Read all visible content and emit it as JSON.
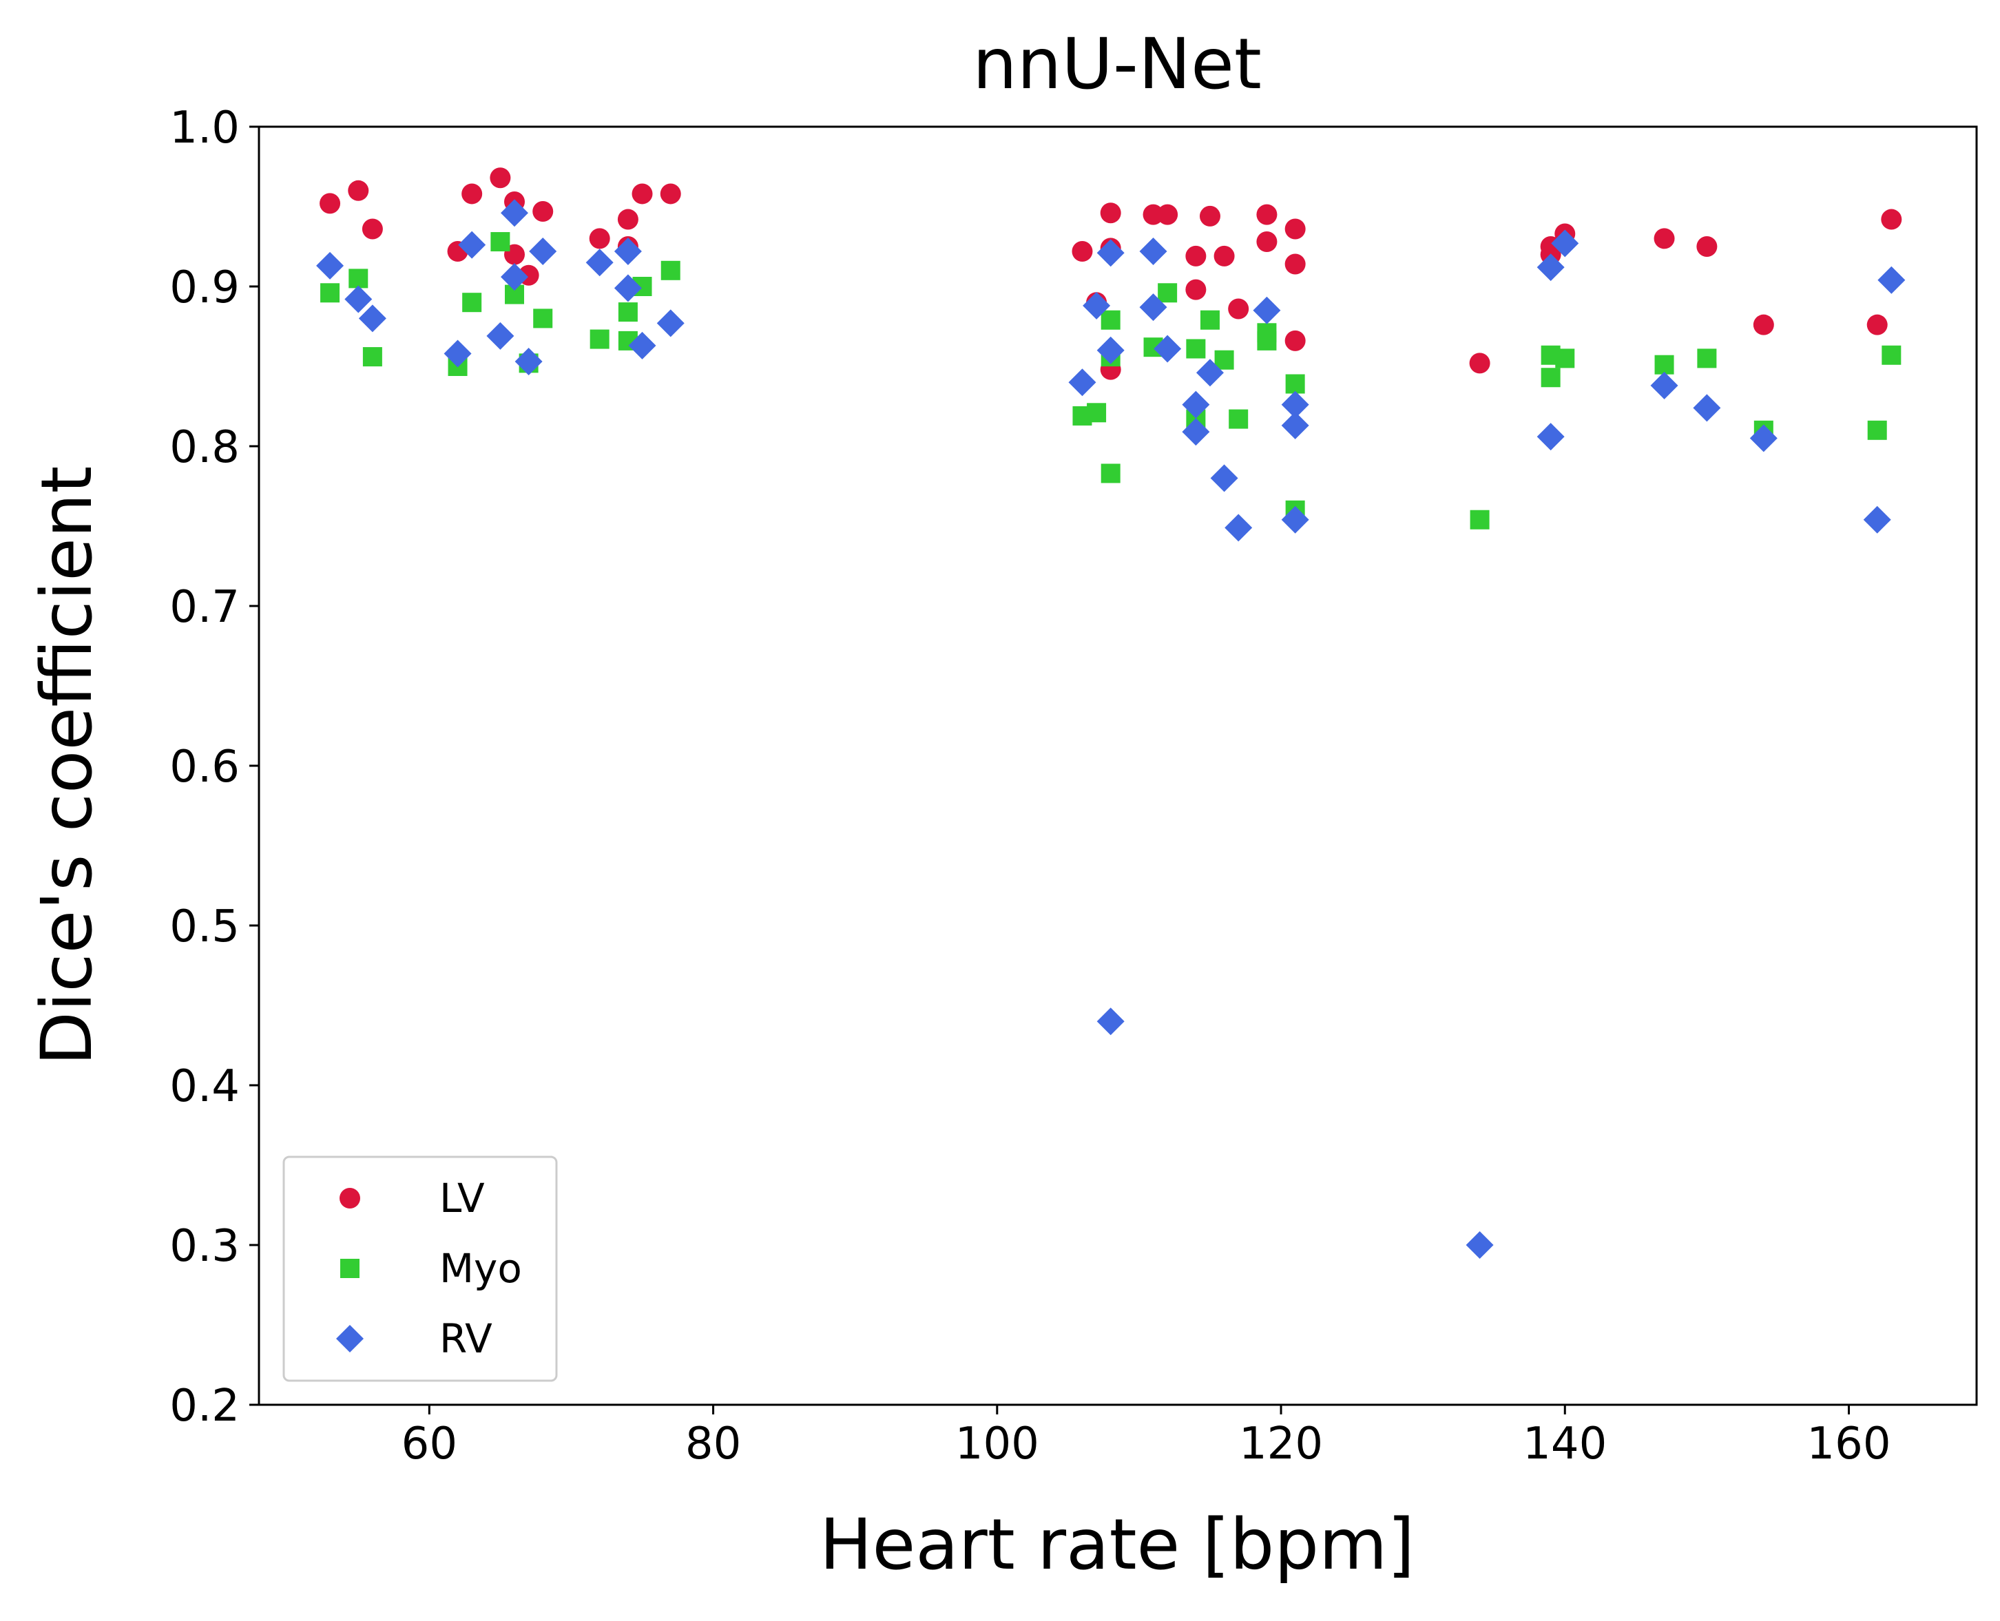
{
  "chart_data": {
    "type": "scatter",
    "title": "nnU-Net",
    "xlabel": "Heart rate [bpm]",
    "ylabel": "Dice's coefficient",
    "xlim": [
      48,
      169
    ],
    "ylim": [
      0.2,
      1.0
    ],
    "xticks": [
      60,
      80,
      100,
      120,
      140,
      160
    ],
    "xtick_labels": [
      "60",
      "80",
      "100",
      "120",
      "140",
      "160"
    ],
    "yticks": [
      0.2,
      0.3,
      0.4,
      0.5,
      0.6,
      0.7,
      0.8,
      0.9,
      1.0
    ],
    "ytick_labels": [
      "0.2",
      "0.3",
      "0.4",
      "0.5",
      "0.6",
      "0.7",
      "0.8",
      "0.9",
      "1.0"
    ],
    "grid": false,
    "legend_position": "lower-left",
    "series": [
      {
        "name": "LV",
        "marker": "circle",
        "color": "#dc143c",
        "points": [
          [
            53,
            0.952
          ],
          [
            55,
            0.96
          ],
          [
            56,
            0.936
          ],
          [
            62,
            0.922
          ],
          [
            63,
            0.958
          ],
          [
            65,
            0.968
          ],
          [
            66,
            0.953
          ],
          [
            66,
            0.92
          ],
          [
            67,
            0.907
          ],
          [
            68,
            0.947
          ],
          [
            72,
            0.93
          ],
          [
            74,
            0.942
          ],
          [
            74,
            0.925
          ],
          [
            75,
            0.958
          ],
          [
            77,
            0.958
          ],
          [
            106,
            0.922
          ],
          [
            107,
            0.89
          ],
          [
            108,
            0.946
          ],
          [
            108,
            0.924
          ],
          [
            108,
            0.848
          ],
          [
            111,
            0.945
          ],
          [
            112,
            0.945
          ],
          [
            114,
            0.919
          ],
          [
            114,
            0.898
          ],
          [
            115,
            0.944
          ],
          [
            116,
            0.919
          ],
          [
            117,
            0.886
          ],
          [
            119,
            0.945
          ],
          [
            119,
            0.928
          ],
          [
            121,
            0.936
          ],
          [
            121,
            0.914
          ],
          [
            121,
            0.866
          ],
          [
            134,
            0.852
          ],
          [
            139,
            0.925
          ],
          [
            139,
            0.92
          ],
          [
            140,
            0.933
          ],
          [
            147,
            0.93
          ],
          [
            150,
            0.925
          ],
          [
            154,
            0.876
          ],
          [
            162,
            0.876
          ],
          [
            163,
            0.942
          ]
        ]
      },
      {
        "name": "Myo",
        "marker": "square",
        "color": "#32cd32",
        "points": [
          [
            53,
            0.896
          ],
          [
            55,
            0.905
          ],
          [
            56,
            0.856
          ],
          [
            62,
            0.85
          ],
          [
            63,
            0.89
          ],
          [
            65,
            0.928
          ],
          [
            66,
            0.895
          ],
          [
            67,
            0.852
          ],
          [
            68,
            0.88
          ],
          [
            72,
            0.867
          ],
          [
            74,
            0.884
          ],
          [
            74,
            0.866
          ],
          [
            75,
            0.9
          ],
          [
            77,
            0.91
          ],
          [
            106,
            0.819
          ],
          [
            107,
            0.821
          ],
          [
            108,
            0.879
          ],
          [
            108,
            0.856
          ],
          [
            108,
            0.783
          ],
          [
            111,
            0.862
          ],
          [
            112,
            0.896
          ],
          [
            114,
            0.861
          ],
          [
            114,
            0.817
          ],
          [
            115,
            0.879
          ],
          [
            116,
            0.854
          ],
          [
            117,
            0.817
          ],
          [
            119,
            0.871
          ],
          [
            119,
            0.866
          ],
          [
            121,
            0.839
          ],
          [
            121,
            0.76
          ],
          [
            134,
            0.754
          ],
          [
            139,
            0.857
          ],
          [
            139,
            0.843
          ],
          [
            140,
            0.855
          ],
          [
            147,
            0.851
          ],
          [
            150,
            0.855
          ],
          [
            154,
            0.81
          ],
          [
            162,
            0.81
          ],
          [
            163,
            0.857
          ]
        ]
      },
      {
        "name": "RV",
        "marker": "diamond",
        "color": "#4169e1",
        "points": [
          [
            53,
            0.913
          ],
          [
            55,
            0.892
          ],
          [
            56,
            0.88
          ],
          [
            62,
            0.858
          ],
          [
            63,
            0.926
          ],
          [
            65,
            0.869
          ],
          [
            66,
            0.946
          ],
          [
            66,
            0.906
          ],
          [
            67,
            0.853
          ],
          [
            68,
            0.922
          ],
          [
            72,
            0.915
          ],
          [
            74,
            0.922
          ],
          [
            74,
            0.899
          ],
          [
            75,
            0.863
          ],
          [
            77,
            0.877
          ],
          [
            106,
            0.84
          ],
          [
            107,
            0.888
          ],
          [
            108,
            0.921
          ],
          [
            108,
            0.86
          ],
          [
            108,
            0.44
          ],
          [
            111,
            0.922
          ],
          [
            111,
            0.887
          ],
          [
            112,
            0.861
          ],
          [
            114,
            0.826
          ],
          [
            114,
            0.809
          ],
          [
            115,
            0.846
          ],
          [
            116,
            0.78
          ],
          [
            117,
            0.749
          ],
          [
            119,
            0.885
          ],
          [
            121,
            0.826
          ],
          [
            121,
            0.813
          ],
          [
            121,
            0.754
          ],
          [
            134,
            0.3
          ],
          [
            139,
            0.912
          ],
          [
            139,
            0.806
          ],
          [
            140,
            0.927
          ],
          [
            147,
            0.838
          ],
          [
            150,
            0.824
          ],
          [
            154,
            0.805
          ],
          [
            162,
            0.754
          ],
          [
            163,
            0.904
          ]
        ]
      }
    ]
  }
}
